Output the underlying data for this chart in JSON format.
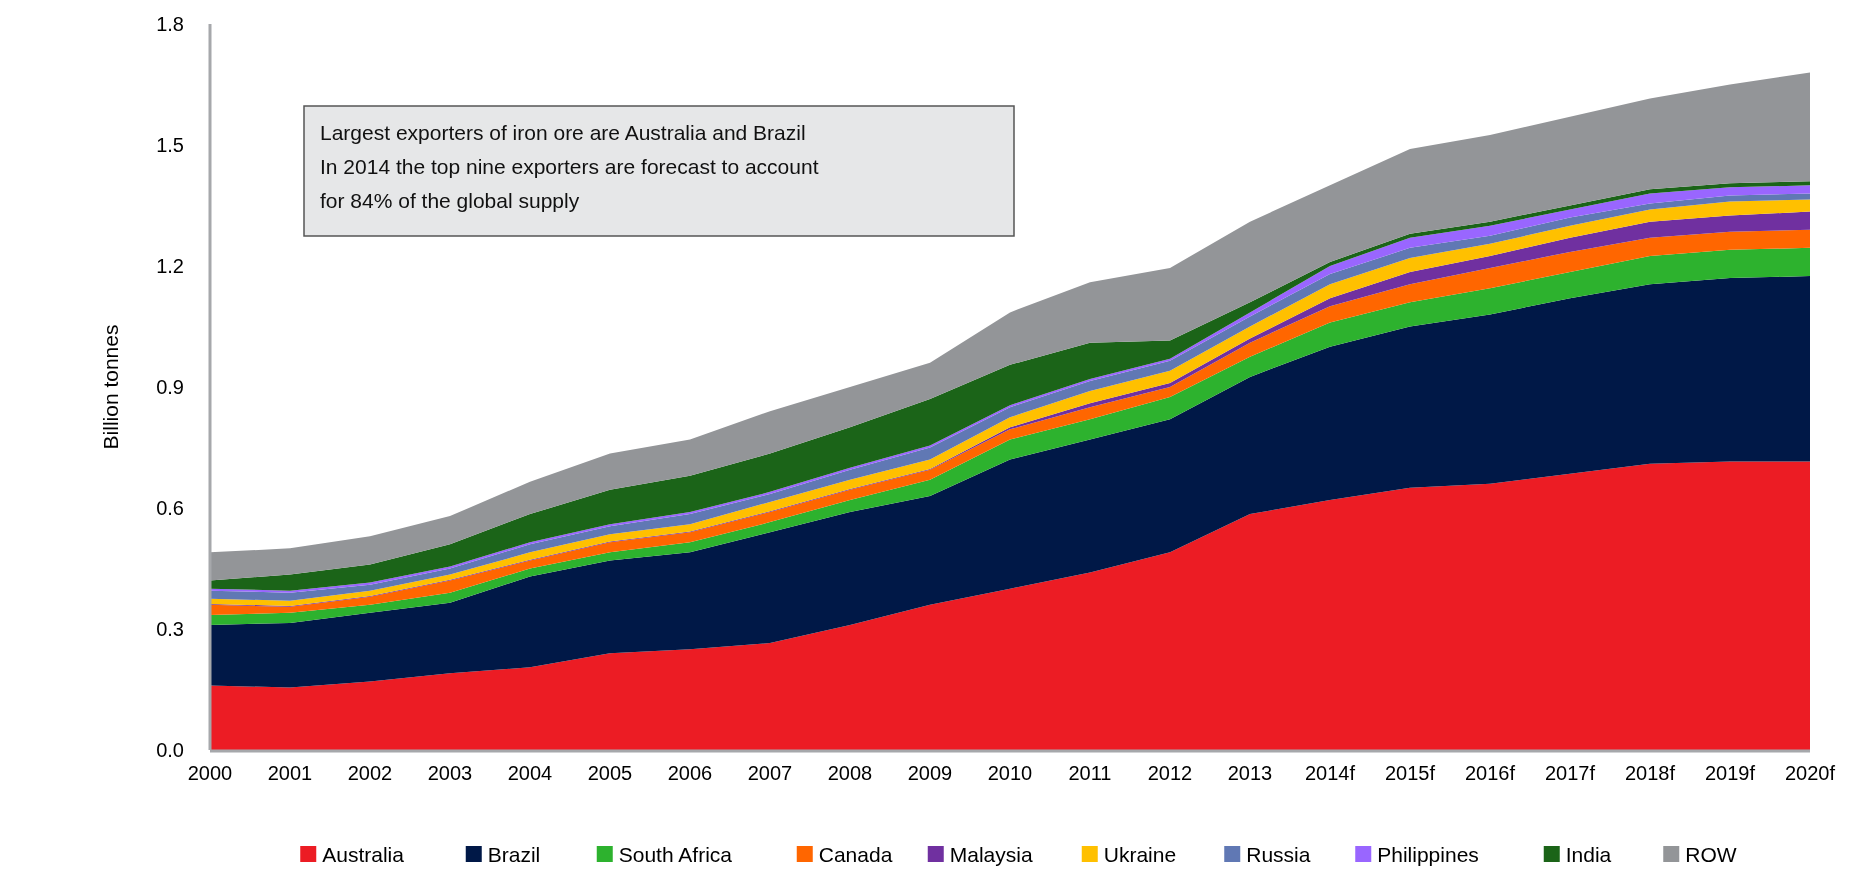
{
  "chart_data": {
    "type": "area",
    "stacked": true,
    "ylabel": "Billion tonnes",
    "categories": [
      "2000",
      "2001",
      "2002",
      "2003",
      "2004",
      "2005",
      "2006",
      "2007",
      "2008",
      "2009",
      "2010",
      "2011",
      "2012",
      "2013",
      "2014f",
      "2015f",
      "2016f",
      "2017f",
      "2018f",
      "2019f",
      "2020f"
    ],
    "ylim": [
      0,
      1.8
    ],
    "yticks": [
      {
        "value": 0,
        "label": "0.0"
      },
      {
        "value": 0.3,
        "label": "0.3"
      },
      {
        "value": 0.6,
        "label": "0.6"
      },
      {
        "value": 0.9,
        "label": "0.9"
      },
      {
        "value": 1.2,
        "label": "1.2"
      },
      {
        "value": 1.5,
        "label": "1.5"
      },
      {
        "value": 1.8,
        "label": "1.8"
      }
    ],
    "grid": false,
    "legend": "bottom",
    "annotations": [
      "Largest exporters of iron ore are Australia and Brazil",
      "In 2014 the top nine exporters are forecast to account for 84% of the global supply"
    ],
    "series": [
      {
        "name": "Australia",
        "color": "#ec1c24",
        "values": [
          0.16,
          0.155,
          0.17,
          0.19,
          0.205,
          0.24,
          0.25,
          0.265,
          0.31,
          0.36,
          0.4,
          0.44,
          0.49,
          0.585,
          0.62,
          0.65,
          0.66,
          0.685,
          0.71,
          0.715,
          0.715
        ]
      },
      {
        "name": "Brazil",
        "color": "#001847",
        "values": [
          0.15,
          0.16,
          0.17,
          0.175,
          0.225,
          0.23,
          0.24,
          0.275,
          0.28,
          0.27,
          0.32,
          0.33,
          0.33,
          0.34,
          0.38,
          0.4,
          0.42,
          0.435,
          0.445,
          0.455,
          0.46
        ]
      },
      {
        "name": "South Africa",
        "color": "#2db22e",
        "values": [
          0.025,
          0.025,
          0.02,
          0.025,
          0.02,
          0.02,
          0.025,
          0.025,
          0.03,
          0.04,
          0.05,
          0.05,
          0.055,
          0.05,
          0.06,
          0.06,
          0.065,
          0.065,
          0.07,
          0.07,
          0.07
        ]
      },
      {
        "name": "Canada",
        "color": "#ff6600",
        "values": [
          0.025,
          0.015,
          0.02,
          0.03,
          0.02,
          0.025,
          0.025,
          0.025,
          0.025,
          0.025,
          0.025,
          0.03,
          0.025,
          0.035,
          0.04,
          0.045,
          0.05,
          0.05,
          0.045,
          0.045,
          0.045
        ]
      },
      {
        "name": "Malaysia",
        "color": "#7030a0",
        "values": [
          0.002,
          0.002,
          0.002,
          0.002,
          0.002,
          0.002,
          0.002,
          0.002,
          0.002,
          0.002,
          0.005,
          0.01,
          0.01,
          0.01,
          0.02,
          0.03,
          0.03,
          0.035,
          0.04,
          0.04,
          0.045
        ]
      },
      {
        "name": "Ukraine",
        "color": "#ffc000",
        "values": [
          0.013,
          0.013,
          0.013,
          0.013,
          0.018,
          0.018,
          0.018,
          0.023,
          0.023,
          0.023,
          0.025,
          0.03,
          0.03,
          0.03,
          0.035,
          0.035,
          0.03,
          0.03,
          0.03,
          0.035,
          0.03
        ]
      },
      {
        "name": "Russia",
        "color": "#6078b4",
        "values": [
          0.02,
          0.02,
          0.015,
          0.015,
          0.02,
          0.02,
          0.025,
          0.02,
          0.025,
          0.03,
          0.025,
          0.025,
          0.025,
          0.025,
          0.025,
          0.025,
          0.02,
          0.02,
          0.015,
          0.015,
          0.015
        ]
      },
      {
        "name": "Philippines",
        "color": "#9966ff",
        "values": [
          0.005,
          0.005,
          0.005,
          0.005,
          0.005,
          0.005,
          0.005,
          0.005,
          0.005,
          0.005,
          0.005,
          0.005,
          0.005,
          0.01,
          0.02,
          0.025,
          0.025,
          0.02,
          0.025,
          0.02,
          0.02
        ]
      },
      {
        "name": "India",
        "color": "#1b6418",
        "values": [
          0.02,
          0.04,
          0.045,
          0.055,
          0.07,
          0.085,
          0.09,
          0.095,
          0.1,
          0.115,
          0.1,
          0.09,
          0.045,
          0.025,
          0.01,
          0.01,
          0.01,
          0.01,
          0.01,
          0.01,
          0.01
        ]
      },
      {
        "name": "ROW",
        "color": "#939598",
        "values": [
          0.07,
          0.065,
          0.07,
          0.07,
          0.08,
          0.09,
          0.09,
          0.105,
          0.1,
          0.09,
          0.13,
          0.15,
          0.18,
          0.2,
          0.19,
          0.21,
          0.215,
          0.22,
          0.225,
          0.245,
          0.27
        ]
      }
    ]
  }
}
